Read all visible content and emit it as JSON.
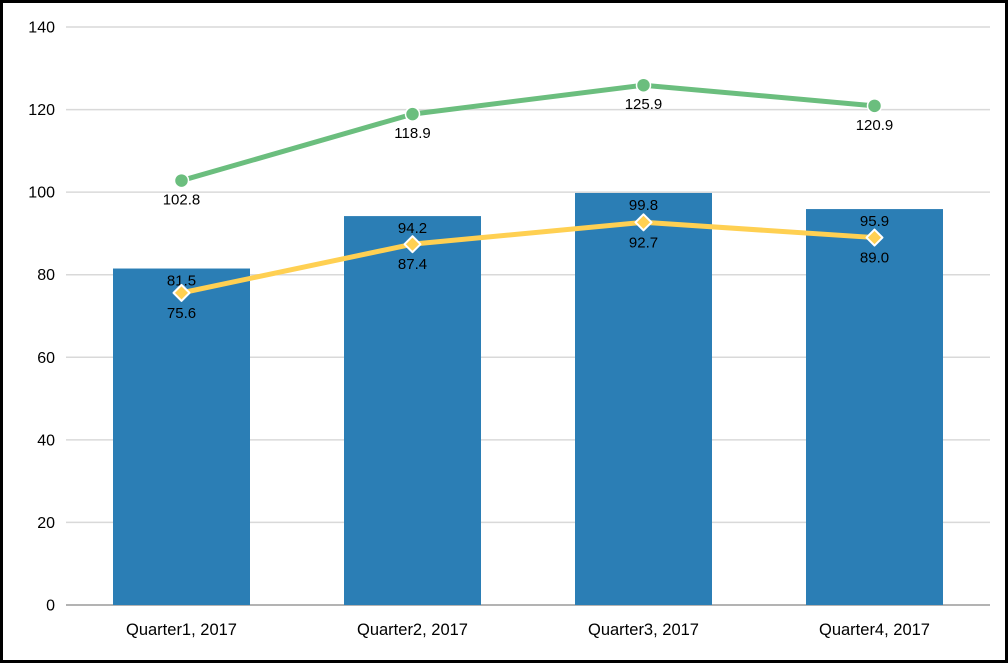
{
  "chart_data": {
    "type": "bar",
    "subtype": "combo-bar-and-lines",
    "title": "",
    "xlabel": "",
    "ylabel": "",
    "categories": [
      "Quarter1, 2017",
      "Quarter2, 2017",
      "Quarter3, 2017",
      "Quarter4, 2017"
    ],
    "series": [
      {
        "id": "bars",
        "type": "bar",
        "color": "#2B7EB5",
        "values": [
          81.5,
          94.2,
          99.8,
          95.9
        ],
        "labels": [
          "81.5",
          "94.2",
          "99.8",
          "95.9"
        ]
      },
      {
        "id": "green-line",
        "type": "line",
        "marker": "circle",
        "color": "#6BBE7E",
        "values": [
          102.8,
          118.9,
          125.9,
          120.9
        ],
        "labels": [
          "102.8",
          "118.9",
          "125.9",
          "120.9"
        ]
      },
      {
        "id": "yellow-line",
        "type": "line",
        "marker": "diamond",
        "color": "#FFD052",
        "values": [
          75.6,
          87.4,
          92.7,
          89.0
        ],
        "labels": [
          "75.6",
          "87.4",
          "92.7",
          "89.0"
        ]
      }
    ],
    "ylim": [
      0,
      140
    ],
    "yticks": [
      0,
      20,
      40,
      60,
      80,
      100,
      120,
      140
    ],
    "ytick_labels": [
      "0",
      "20",
      "40",
      "60",
      "80",
      "100",
      "120",
      "140"
    ],
    "grid": true,
    "legend_position": "none",
    "colors": {
      "bar": "#2B7EB5",
      "green_line": "#6BBE7E",
      "yellow_line": "#FFD052",
      "gridline": "#D9D9D9",
      "axis_line": "#B3B3B3",
      "marker_border": "#FFFFFF",
      "text": "#000000",
      "frame_border": "#000000",
      "background": "#FFFFFF"
    }
  }
}
